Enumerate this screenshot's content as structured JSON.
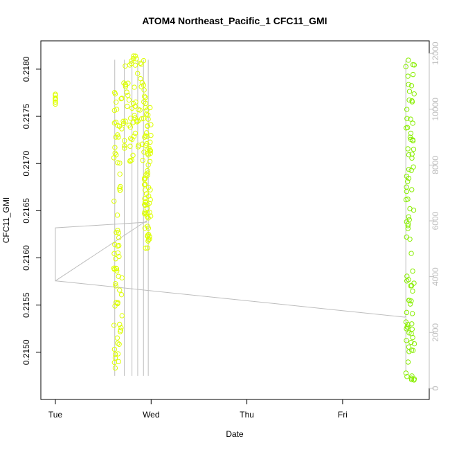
{
  "chart_data": {
    "type": "scatter",
    "title": "ATOM4 Northeast_Pacific_1 CFC11_GMI",
    "xlabel": "Date",
    "ylabel": "CFC11_GMI",
    "x_ticks": [
      "Tue",
      "Wed",
      "Thu",
      "Fri"
    ],
    "x_range_days": [
      0,
      3.72
    ],
    "ylim": [
      0.2145,
      0.2183
    ],
    "yticks": [
      "0.2150",
      "0.2155",
      "0.2160",
      "0.2165",
      "0.2170",
      "0.2175",
      "0.2180"
    ],
    "y2lim": [
      -400,
      12450
    ],
    "y2ticks": [
      "0",
      "2000",
      "4000",
      "6000",
      "8000",
      "10000",
      "12000"
    ],
    "colors": {
      "early": "#ddff00",
      "late": "#88ee00",
      "altitude_line": "#bdbdbd",
      "right_axis": "#bdbdbd"
    },
    "series": [
      {
        "marker": "open-circle",
        "clusters": [
          {
            "x": 0.0,
            "y": [
              0.21762,
              0.21775
            ]
          },
          {
            "x": [
              0.61,
              0.7
            ],
            "y": [
              0.21483,
              0.21778
            ]
          },
          {
            "x": [
              0.7,
              0.95
            ],
            "y": [
              0.217,
              0.21815
            ]
          },
          {
            "x": [
              0.93,
              1.0
            ],
            "y": [
              0.2161,
              0.2176
            ]
          },
          {
            "x": [
              3.66,
              3.75
            ],
            "y": [
              0.2147,
              0.2181
            ]
          }
        ]
      }
    ],
    "altitude_series": {
      "x": [
        0.0,
        0.0,
        0.95,
        0.95,
        0.0,
        0.0,
        3.65,
        3.66
      ],
      "y2": [
        5750,
        3850,
        6000,
        5950,
        5750,
        3850,
        2550,
        2600
      ]
    }
  }
}
